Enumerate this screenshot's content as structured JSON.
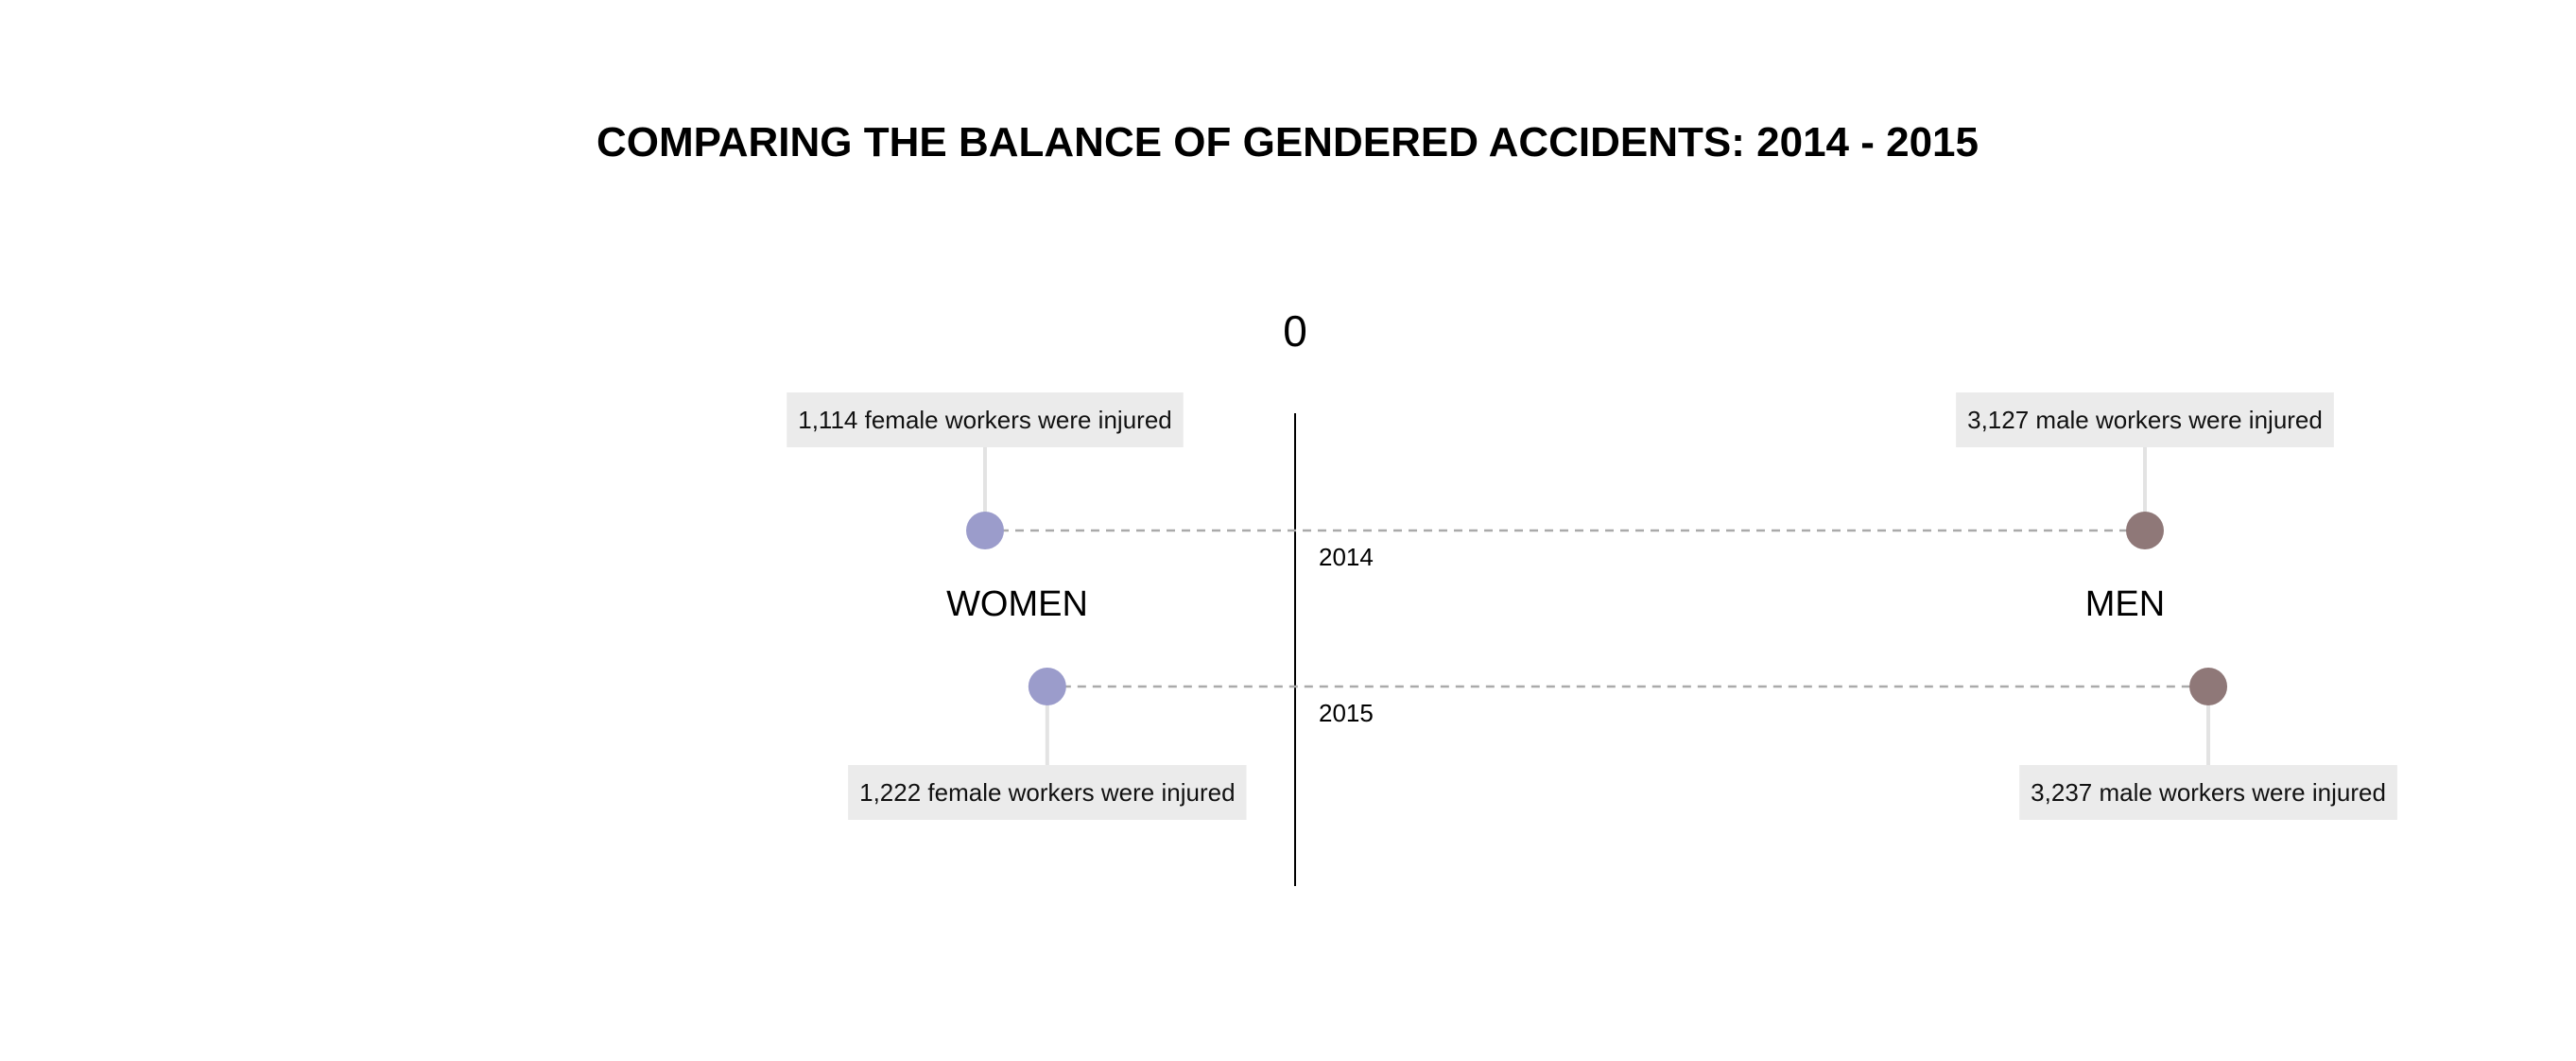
{
  "chart_data": {
    "type": "scatter",
    "title": "COMPARING THE BALANCE OF GENDERED ACCIDENTS: 2014 - 2015",
    "center_label": "0",
    "group_labels": {
      "left": "WOMEN",
      "right": "MEN"
    },
    "years": [
      {
        "year": "2014",
        "women": 1114,
        "men": 3127,
        "women_annotation": "1,114 female workers were injured",
        "men_annotation": "3,127 male workers were injured"
      },
      {
        "year": "2015",
        "women": 1222,
        "men": 3237,
        "women_annotation": "1,222 female workers were injured",
        "men_annotation": "3,237 male workers were injured"
      }
    ],
    "colors": {
      "women": "#9b9ccb",
      "men": "#8f7878",
      "connector": "#aaaaaa",
      "axis": "#000000",
      "label_box": "#ebebeb",
      "leader": "#e3e3e3"
    }
  }
}
